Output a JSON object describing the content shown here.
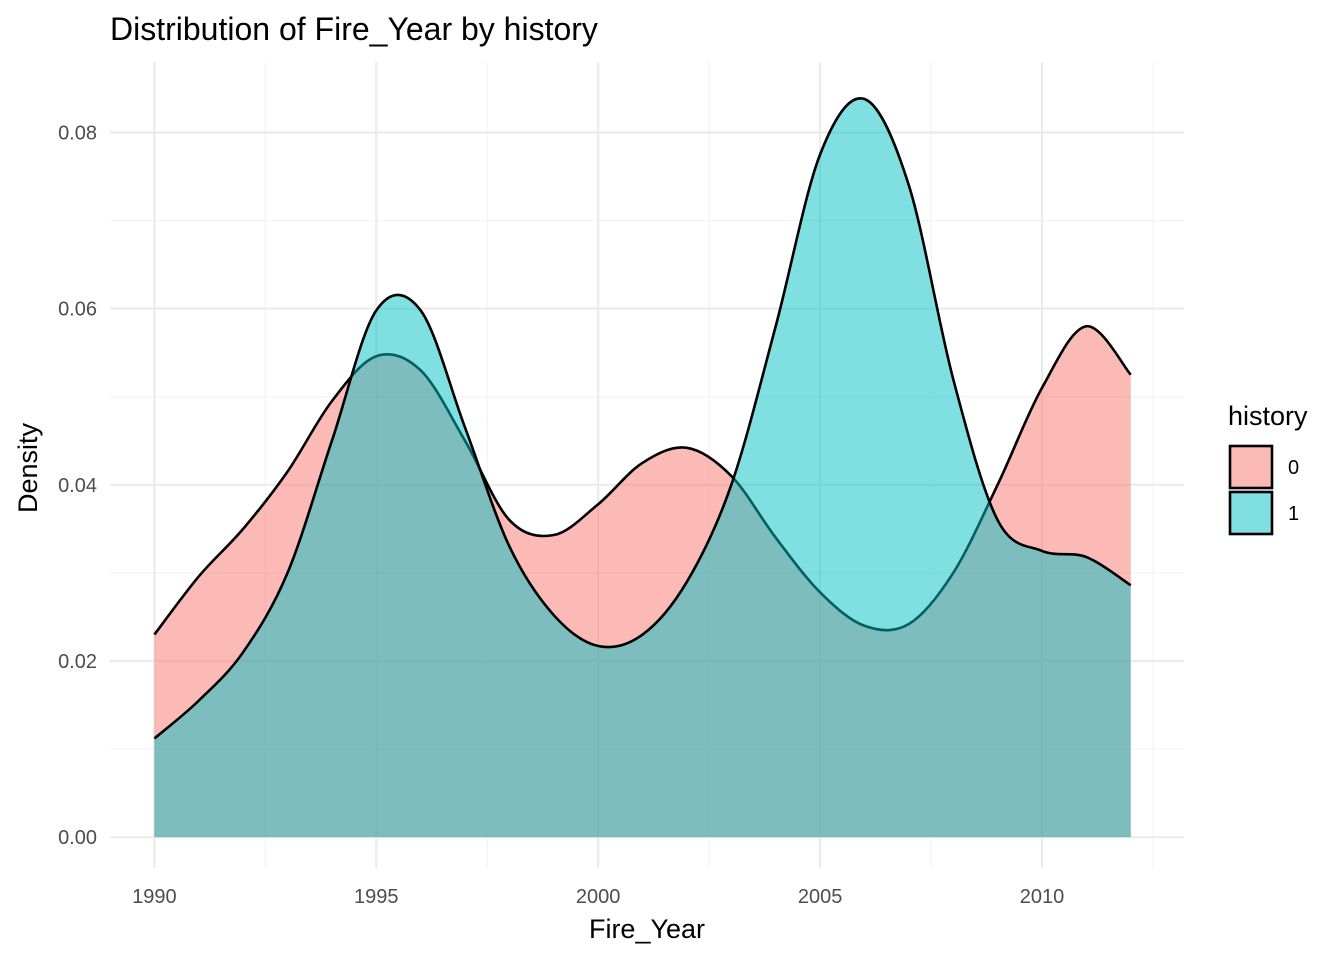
{
  "chart_data": {
    "type": "area",
    "subtype": "density",
    "title": "Distribution of Fire_Year by history",
    "xlabel": "Fire_Year",
    "ylabel": "Density",
    "xlim": [
      1989,
      2013.2
    ],
    "ylim": [
      -0.0035,
      0.088
    ],
    "x_ticks": [
      1990,
      1995,
      2000,
      2005,
      2010
    ],
    "x_tick_labels": [
      "1990",
      "1995",
      "2000",
      "2005",
      "2010"
    ],
    "y_ticks": [
      0.0,
      0.02,
      0.04,
      0.06,
      0.08
    ],
    "y_tick_labels": [
      "0.00",
      "0.02",
      "0.04",
      "0.06",
      "0.08"
    ],
    "grid": true,
    "legend": {
      "title": "history",
      "placement": "right"
    },
    "series": [
      {
        "name": "0",
        "color": "#F8766D",
        "points": [
          [
            1990,
            0.023
          ],
          [
            1991,
            0.0296
          ],
          [
            1992,
            0.035
          ],
          [
            1993,
            0.0415
          ],
          [
            1994,
            0.0495
          ],
          [
            1995,
            0.0546
          ],
          [
            1996,
            0.053
          ],
          [
            1997,
            0.045
          ],
          [
            1998,
            0.036
          ],
          [
            1999,
            0.0343
          ],
          [
            2000,
            0.0378
          ],
          [
            2001,
            0.0425
          ],
          [
            2002,
            0.0442
          ],
          [
            2003,
            0.041
          ],
          [
            2004,
            0.034
          ],
          [
            2005,
            0.0278
          ],
          [
            2006,
            0.024
          ],
          [
            2007,
            0.0242
          ],
          [
            2008,
            0.03
          ],
          [
            2009,
            0.04
          ],
          [
            2010,
            0.051
          ],
          [
            2011,
            0.058
          ],
          [
            2012,
            0.0525
          ]
        ]
      },
      {
        "name": "1",
        "color": "#00BFC4",
        "points": [
          [
            1990,
            0.0112
          ],
          [
            1991,
            0.0155
          ],
          [
            1992,
            0.021
          ],
          [
            1993,
            0.03
          ],
          [
            1994,
            0.045
          ],
          [
            1995,
            0.0598
          ],
          [
            1996,
            0.0598
          ],
          [
            1997,
            0.0465
          ],
          [
            1998,
            0.033
          ],
          [
            1999,
            0.0252
          ],
          [
            2000,
            0.0217
          ],
          [
            2001,
            0.023
          ],
          [
            2002,
            0.029
          ],
          [
            2003,
            0.04
          ],
          [
            2004,
            0.058
          ],
          [
            2005,
            0.0775
          ],
          [
            2006,
            0.0838
          ],
          [
            2007,
            0.074
          ],
          [
            2008,
            0.052
          ],
          [
            2009,
            0.036
          ],
          [
            2010,
            0.0325
          ],
          [
            2011,
            0.0318
          ],
          [
            2012,
            0.0286
          ]
        ]
      }
    ]
  }
}
